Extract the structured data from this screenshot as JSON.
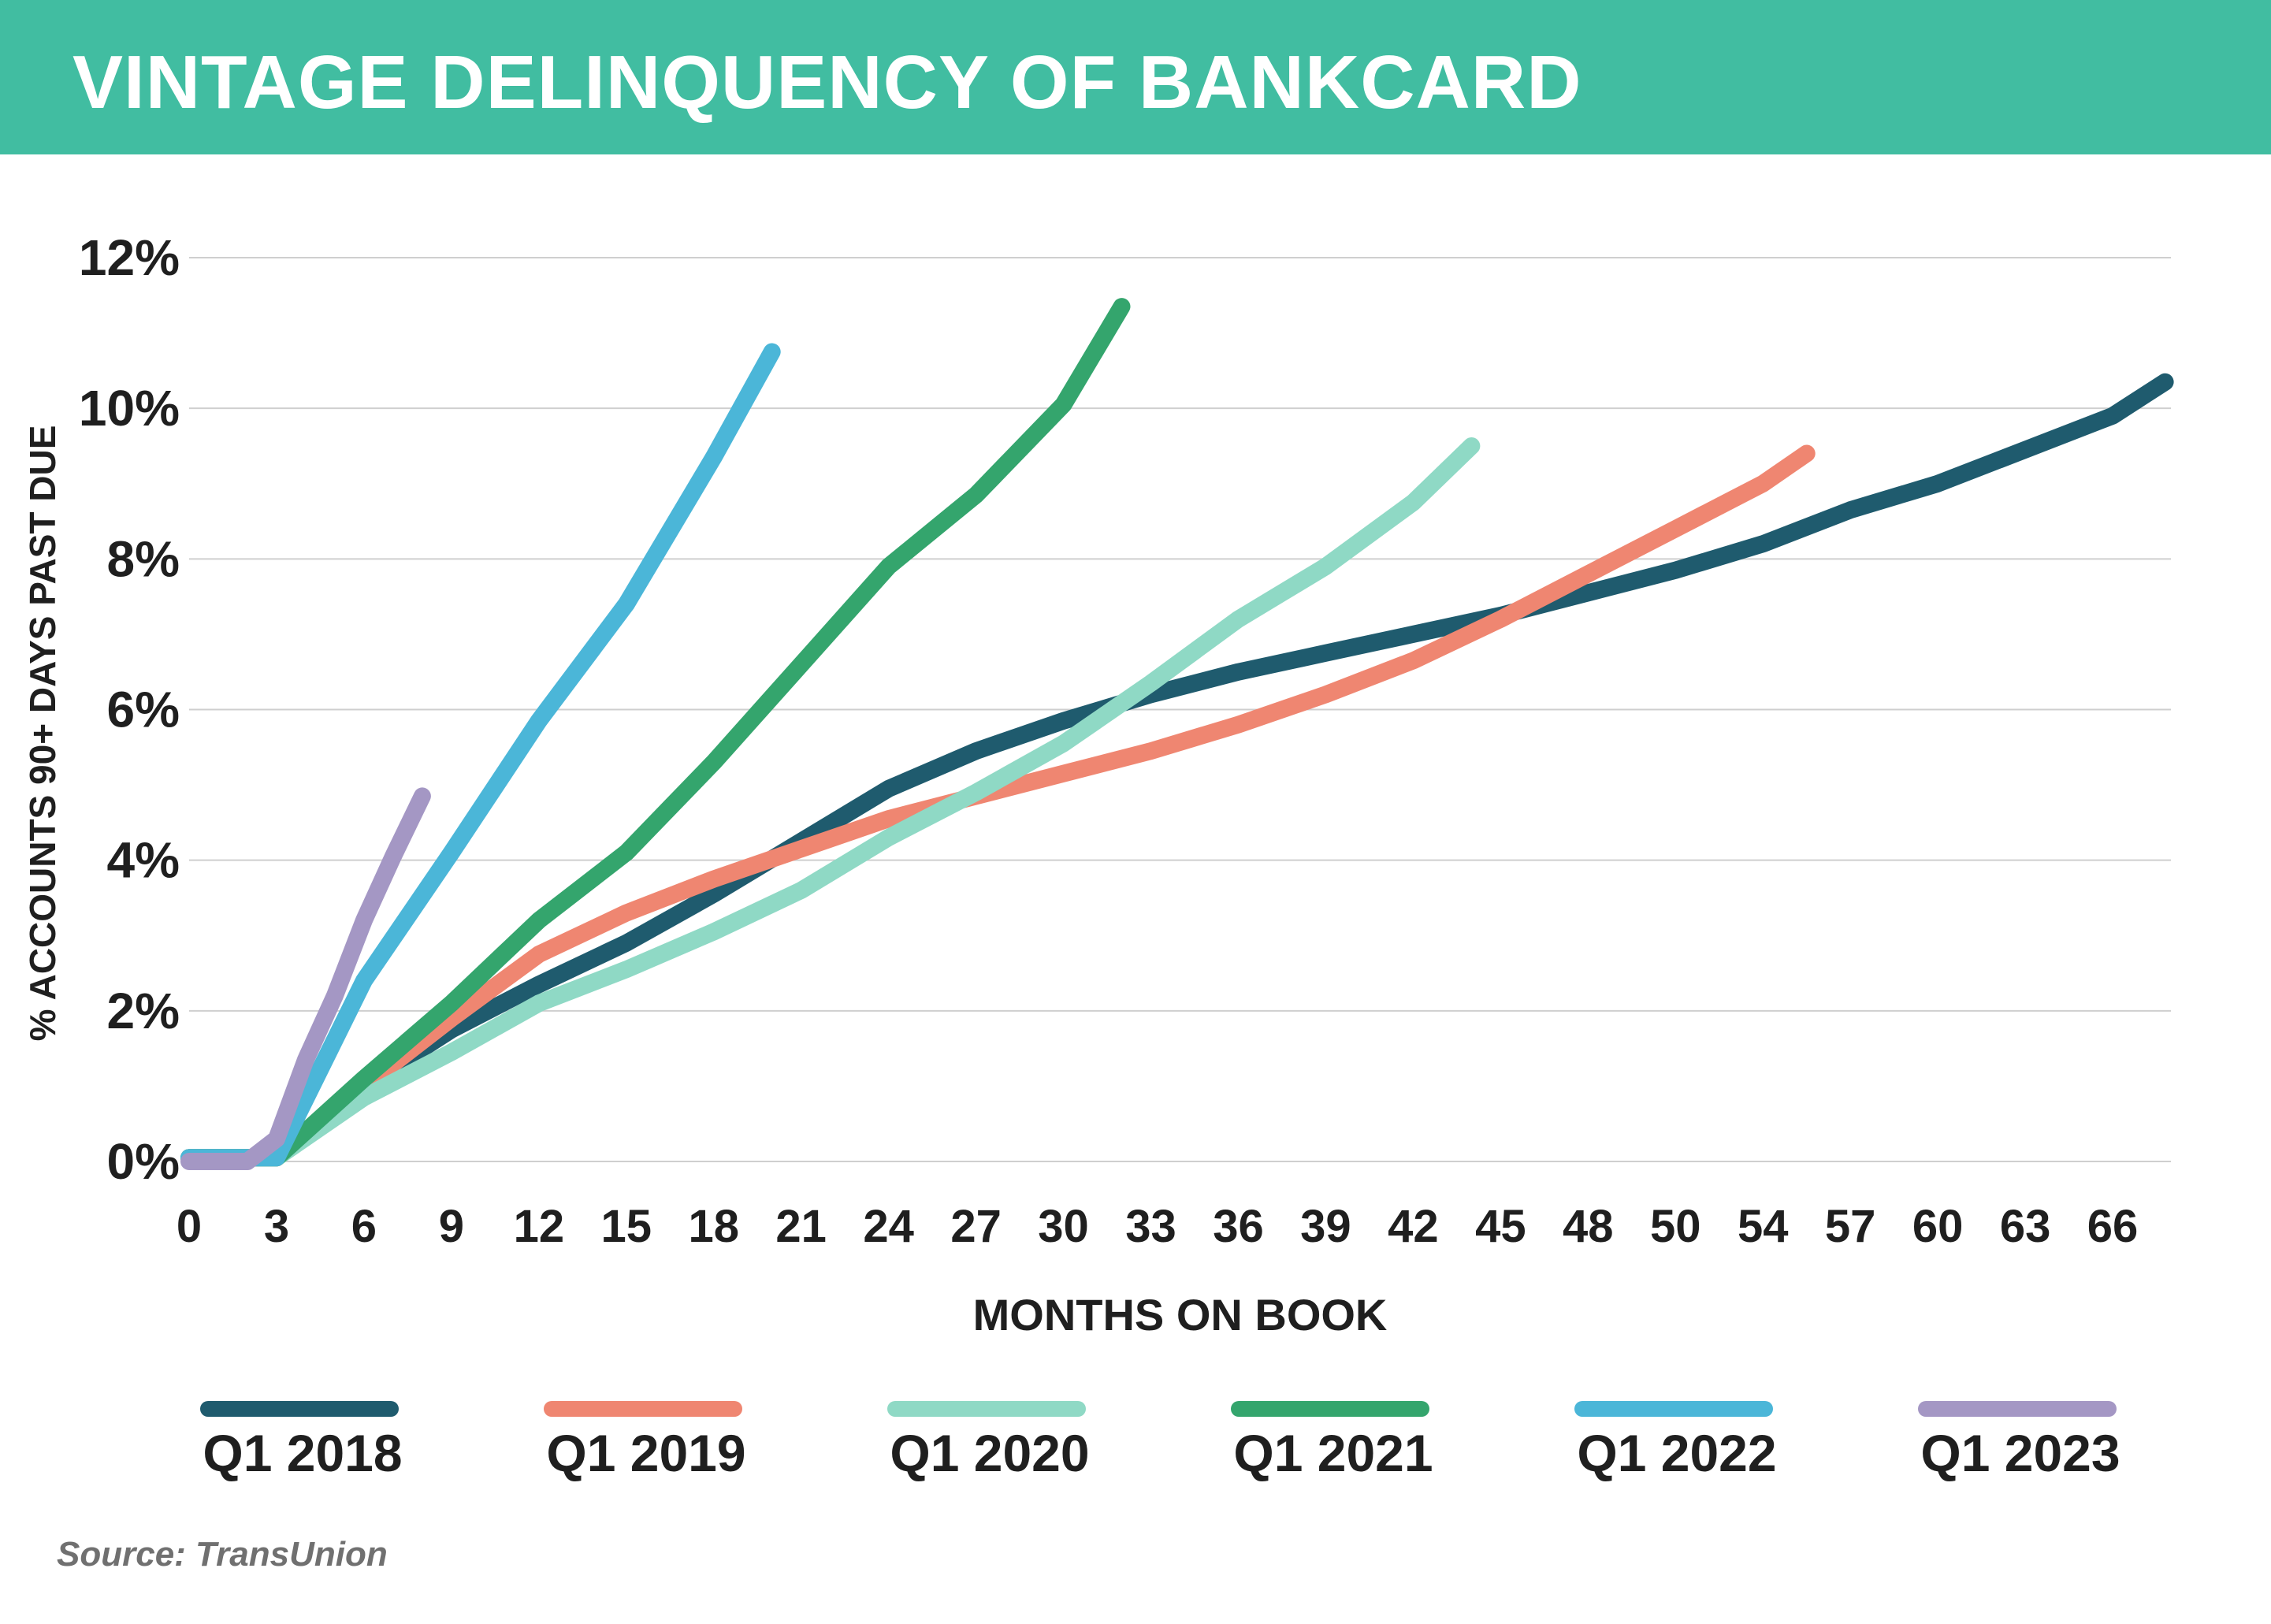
{
  "header": {
    "title": "VINTAGE DELINQUENCY OF BANKCARD"
  },
  "source": "Source: TransUnion",
  "colors": {
    "banner": "#41bda1",
    "grid": "#cfcfcf",
    "text": "#1f1f1f",
    "source": "#707070"
  },
  "chart_data": {
    "type": "line",
    "title": "VINTAGE DELINQUENCY OF BANKCARD",
    "xlabel": "MONTHS ON BOOK",
    "ylabel": "% ACCOUNTS 90+ DAYS PAST DUE",
    "xlim": [
      0,
      68
    ],
    "ylim": [
      0,
      12
    ],
    "x_tick_labels": [
      "0",
      "3",
      "6",
      "9",
      "12",
      "15",
      "18",
      "21",
      "24",
      "27",
      "30",
      "33",
      "36",
      "39",
      "42",
      "45",
      "48",
      "50",
      "54",
      "57",
      "60",
      "63",
      "66"
    ],
    "y_tick_labels": [
      "0%",
      "2%",
      "4%",
      "6%",
      "8%",
      "10%",
      "12%"
    ],
    "y_ticks": [
      0,
      2,
      4,
      6,
      8,
      10,
      12
    ],
    "grid": true,
    "legend_position": "bottom",
    "series": [
      {
        "name": "Q1 2018",
        "color": "#1f5b6e",
        "x": [
          0,
          3,
          6,
          9,
          12,
          15,
          18,
          21,
          24,
          27,
          30,
          33,
          36,
          39,
          42,
          45,
          48,
          51,
          54,
          57,
          60,
          63,
          66,
          67.8
        ],
        "y": [
          0.05,
          0.05,
          1.0,
          1.75,
          2.35,
          2.9,
          3.55,
          4.25,
          4.95,
          5.45,
          5.85,
          6.2,
          6.5,
          6.75,
          7.0,
          7.25,
          7.55,
          7.85,
          8.2,
          8.65,
          9.0,
          9.45,
          9.9,
          10.35
        ]
      },
      {
        "name": "Q1 2019",
        "color": "#ef8671",
        "x": [
          0,
          3,
          6,
          9,
          12,
          15,
          18,
          21,
          24,
          27,
          30,
          33,
          36,
          39,
          42,
          45,
          48,
          51,
          54,
          55.5
        ],
        "y": [
          0.05,
          0.05,
          1.0,
          1.9,
          2.75,
          3.3,
          3.75,
          4.15,
          4.55,
          4.85,
          5.15,
          5.45,
          5.8,
          6.2,
          6.65,
          7.2,
          7.8,
          8.4,
          9.0,
          9.4
        ]
      },
      {
        "name": "Q1 2020",
        "color": "#8fd9c5",
        "x": [
          0,
          3,
          6,
          9,
          12,
          15,
          18,
          21,
          24,
          27,
          30,
          33,
          36,
          39,
          42,
          44
        ],
        "y": [
          0.05,
          0.05,
          0.85,
          1.45,
          2.1,
          2.55,
          3.05,
          3.6,
          4.3,
          4.9,
          5.55,
          6.35,
          7.2,
          7.9,
          8.75,
          9.5
        ]
      },
      {
        "name": "Q1 2021",
        "color": "#34a56d",
        "x": [
          0,
          3,
          6,
          9,
          12,
          15,
          18,
          21,
          24,
          27,
          30,
          32
        ],
        "y": [
          0.05,
          0.05,
          1.1,
          2.1,
          3.2,
          4.1,
          5.3,
          6.6,
          7.9,
          8.85,
          10.05,
          11.35
        ]
      },
      {
        "name": "Q1 2022",
        "color": "#4bb6d8",
        "x": [
          0,
          3,
          6,
          9,
          12,
          15,
          18,
          20
        ],
        "y": [
          0.05,
          0.05,
          2.4,
          4.1,
          5.85,
          7.4,
          9.35,
          10.75
        ]
      },
      {
        "name": "Q1 2023",
        "color": "#a497c4",
        "x": [
          0,
          2,
          3,
          4,
          5,
          6,
          7,
          8
        ],
        "y": [
          0.0,
          0.0,
          0.3,
          1.35,
          2.2,
          3.2,
          4.05,
          4.85
        ]
      }
    ]
  }
}
